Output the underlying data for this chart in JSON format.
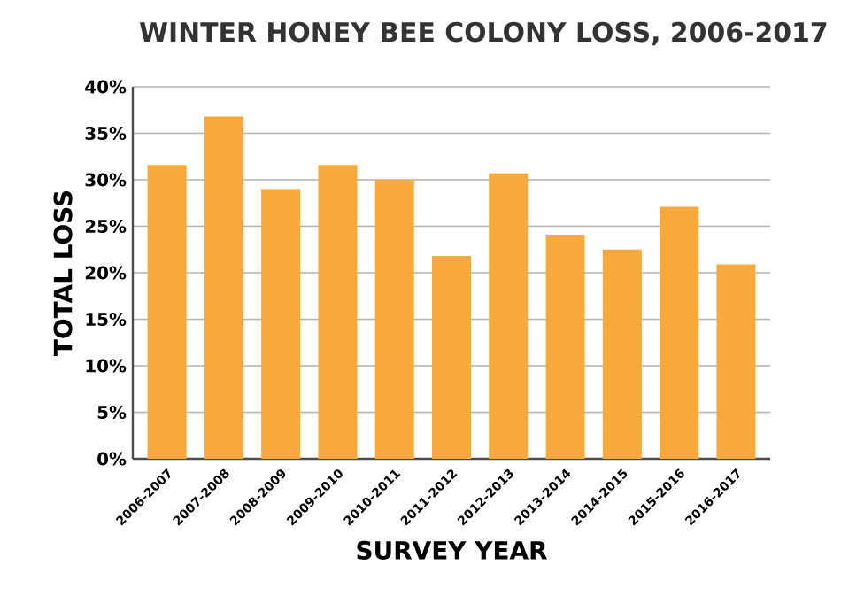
{
  "chart_data": {
    "type": "bar",
    "title": "WINTER HONEY BEE COLONY LOSS, 2006-2017",
    "xlabel": "SURVEY YEAR",
    "ylabel": "TOTAL LOSS",
    "categories": [
      "2006-2007",
      "2007-2008",
      "2008-2009",
      "2009-2010",
      "2010-2011",
      "2011-2012",
      "2012-2013",
      "2013-2014",
      "2014-2015",
      "2015-2016",
      "2016-2017"
    ],
    "values": [
      31.6,
      36.8,
      29.0,
      31.6,
      30.0,
      21.8,
      30.7,
      24.1,
      22.5,
      27.1,
      20.9
    ],
    "color": "#f7aa3b",
    "ylim": [
      0,
      40
    ],
    "yticks": [
      {
        "value": 0,
        "label": "0%"
      },
      {
        "value": 5,
        "label": "5%"
      },
      {
        "value": 10,
        "label": "10%"
      },
      {
        "value": 15,
        "label": "15%"
      },
      {
        "value": 20,
        "label": "20%"
      },
      {
        "value": 25,
        "label": "25%"
      },
      {
        "value": 30,
        "label": "30%"
      },
      {
        "value": 35,
        "label": "35%"
      },
      {
        "value": 40,
        "label": "40%"
      }
    ],
    "grid": "y"
  }
}
